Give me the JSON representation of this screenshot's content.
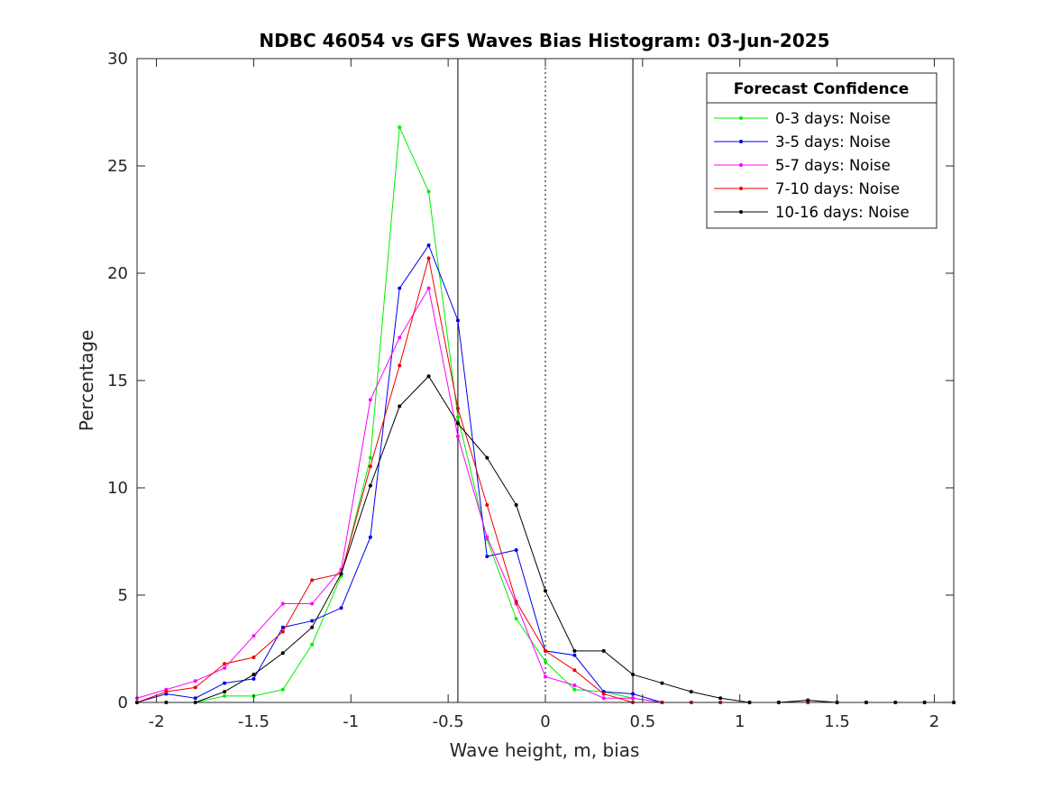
{
  "chart_data": {
    "type": "line",
    "title": "NDBC 46054 vs GFS Waves Bias Histogram: 03-Jun-2025",
    "xlabel": "Wave height, m, bias",
    "ylabel": "Percentage",
    "xlim": [
      -2.1,
      2.1
    ],
    "ylim": [
      0,
      30
    ],
    "xticks": [
      -2,
      -1.5,
      -1,
      -0.5,
      0,
      0.5,
      1,
      1.5,
      2
    ],
    "xtick_labels": [
      "-2",
      "-1.5",
      "-1",
      "-0.5",
      "0",
      "0.5",
      "1",
      "1.5",
      "2"
    ],
    "yticks": [
      0,
      5,
      10,
      15,
      20,
      25,
      30
    ],
    "ytick_labels": [
      "0",
      "5",
      "10",
      "15",
      "20",
      "25",
      "30"
    ],
    "grid": false,
    "vertical_lines": [
      {
        "x": -0.45,
        "style": "solid",
        "color": "#000000"
      },
      {
        "x": 0,
        "style": "dotted",
        "color": "#000000"
      },
      {
        "x": 0.45,
        "style": "solid",
        "color": "#000000"
      }
    ],
    "legend": {
      "title": "Forecast Confidence",
      "position": "top-right"
    },
    "x": [
      -2.1,
      -1.95,
      -1.8,
      -1.65,
      -1.5,
      -1.35,
      -1.2,
      -1.05,
      -0.9,
      -0.75,
      -0.6,
      -0.45,
      -0.3,
      -0.15,
      0,
      0.15,
      0.3,
      0.45,
      0.6,
      0.75,
      0.9,
      1.05,
      1.2,
      1.35,
      1.5,
      1.65,
      1.8,
      1.95,
      2.1
    ],
    "series": [
      {
        "name": "0-3 days: Noise",
        "color": "#00ee00",
        "values": [
          0,
          0,
          0,
          0.3,
          0.3,
          0.6,
          2.7,
          5.9,
          11.4,
          26.8,
          23.8,
          13.3,
          7.6,
          3.9,
          1.9,
          0.6,
          0.5,
          0.2,
          0,
          0,
          0,
          0,
          0,
          0,
          0,
          0,
          0,
          0,
          0
        ]
      },
      {
        "name": "3-5 days: Noise",
        "color": "#0000ee",
        "values": [
          0,
          0.4,
          0.2,
          0.9,
          1.1,
          3.5,
          3.8,
          4.4,
          7.7,
          19.3,
          21.3,
          17.8,
          6.8,
          7.1,
          2.4,
          2.2,
          0.5,
          0.4,
          0,
          0,
          0,
          0,
          0,
          0,
          0,
          0,
          0,
          0,
          0
        ]
      },
      {
        "name": "5-7 days: Noise",
        "color": "#ff00ff",
        "values": [
          0.2,
          0.6,
          1.0,
          1.6,
          3.1,
          4.6,
          4.6,
          6.2,
          14.1,
          17.0,
          19.3,
          12.4,
          7.7,
          4.6,
          1.2,
          0.8,
          0.2,
          0.2,
          0,
          0,
          0,
          0,
          0,
          0.1,
          0,
          0,
          0,
          0,
          0
        ]
      },
      {
        "name": "7-10 days: Noise",
        "color": "#ee0000",
        "values": [
          0,
          0.5,
          0.7,
          1.8,
          2.1,
          3.3,
          5.7,
          6.0,
          11.0,
          15.7,
          20.7,
          13.7,
          9.2,
          4.7,
          2.4,
          1.5,
          0.4,
          0,
          0,
          0,
          0,
          0,
          0,
          0,
          0,
          0,
          0,
          0,
          0
        ]
      },
      {
        "name": "10-16 days: Noise",
        "color": "#000000",
        "values": [
          0,
          0,
          0,
          0.5,
          1.3,
          2.3,
          3.5,
          6.0,
          10.1,
          13.8,
          15.2,
          13.0,
          11.4,
          9.2,
          5.2,
          2.4,
          2.4,
          1.3,
          0.9,
          0.5,
          0.2,
          0,
          0,
          0.1,
          0,
          0,
          0,
          0,
          0
        ]
      }
    ]
  }
}
